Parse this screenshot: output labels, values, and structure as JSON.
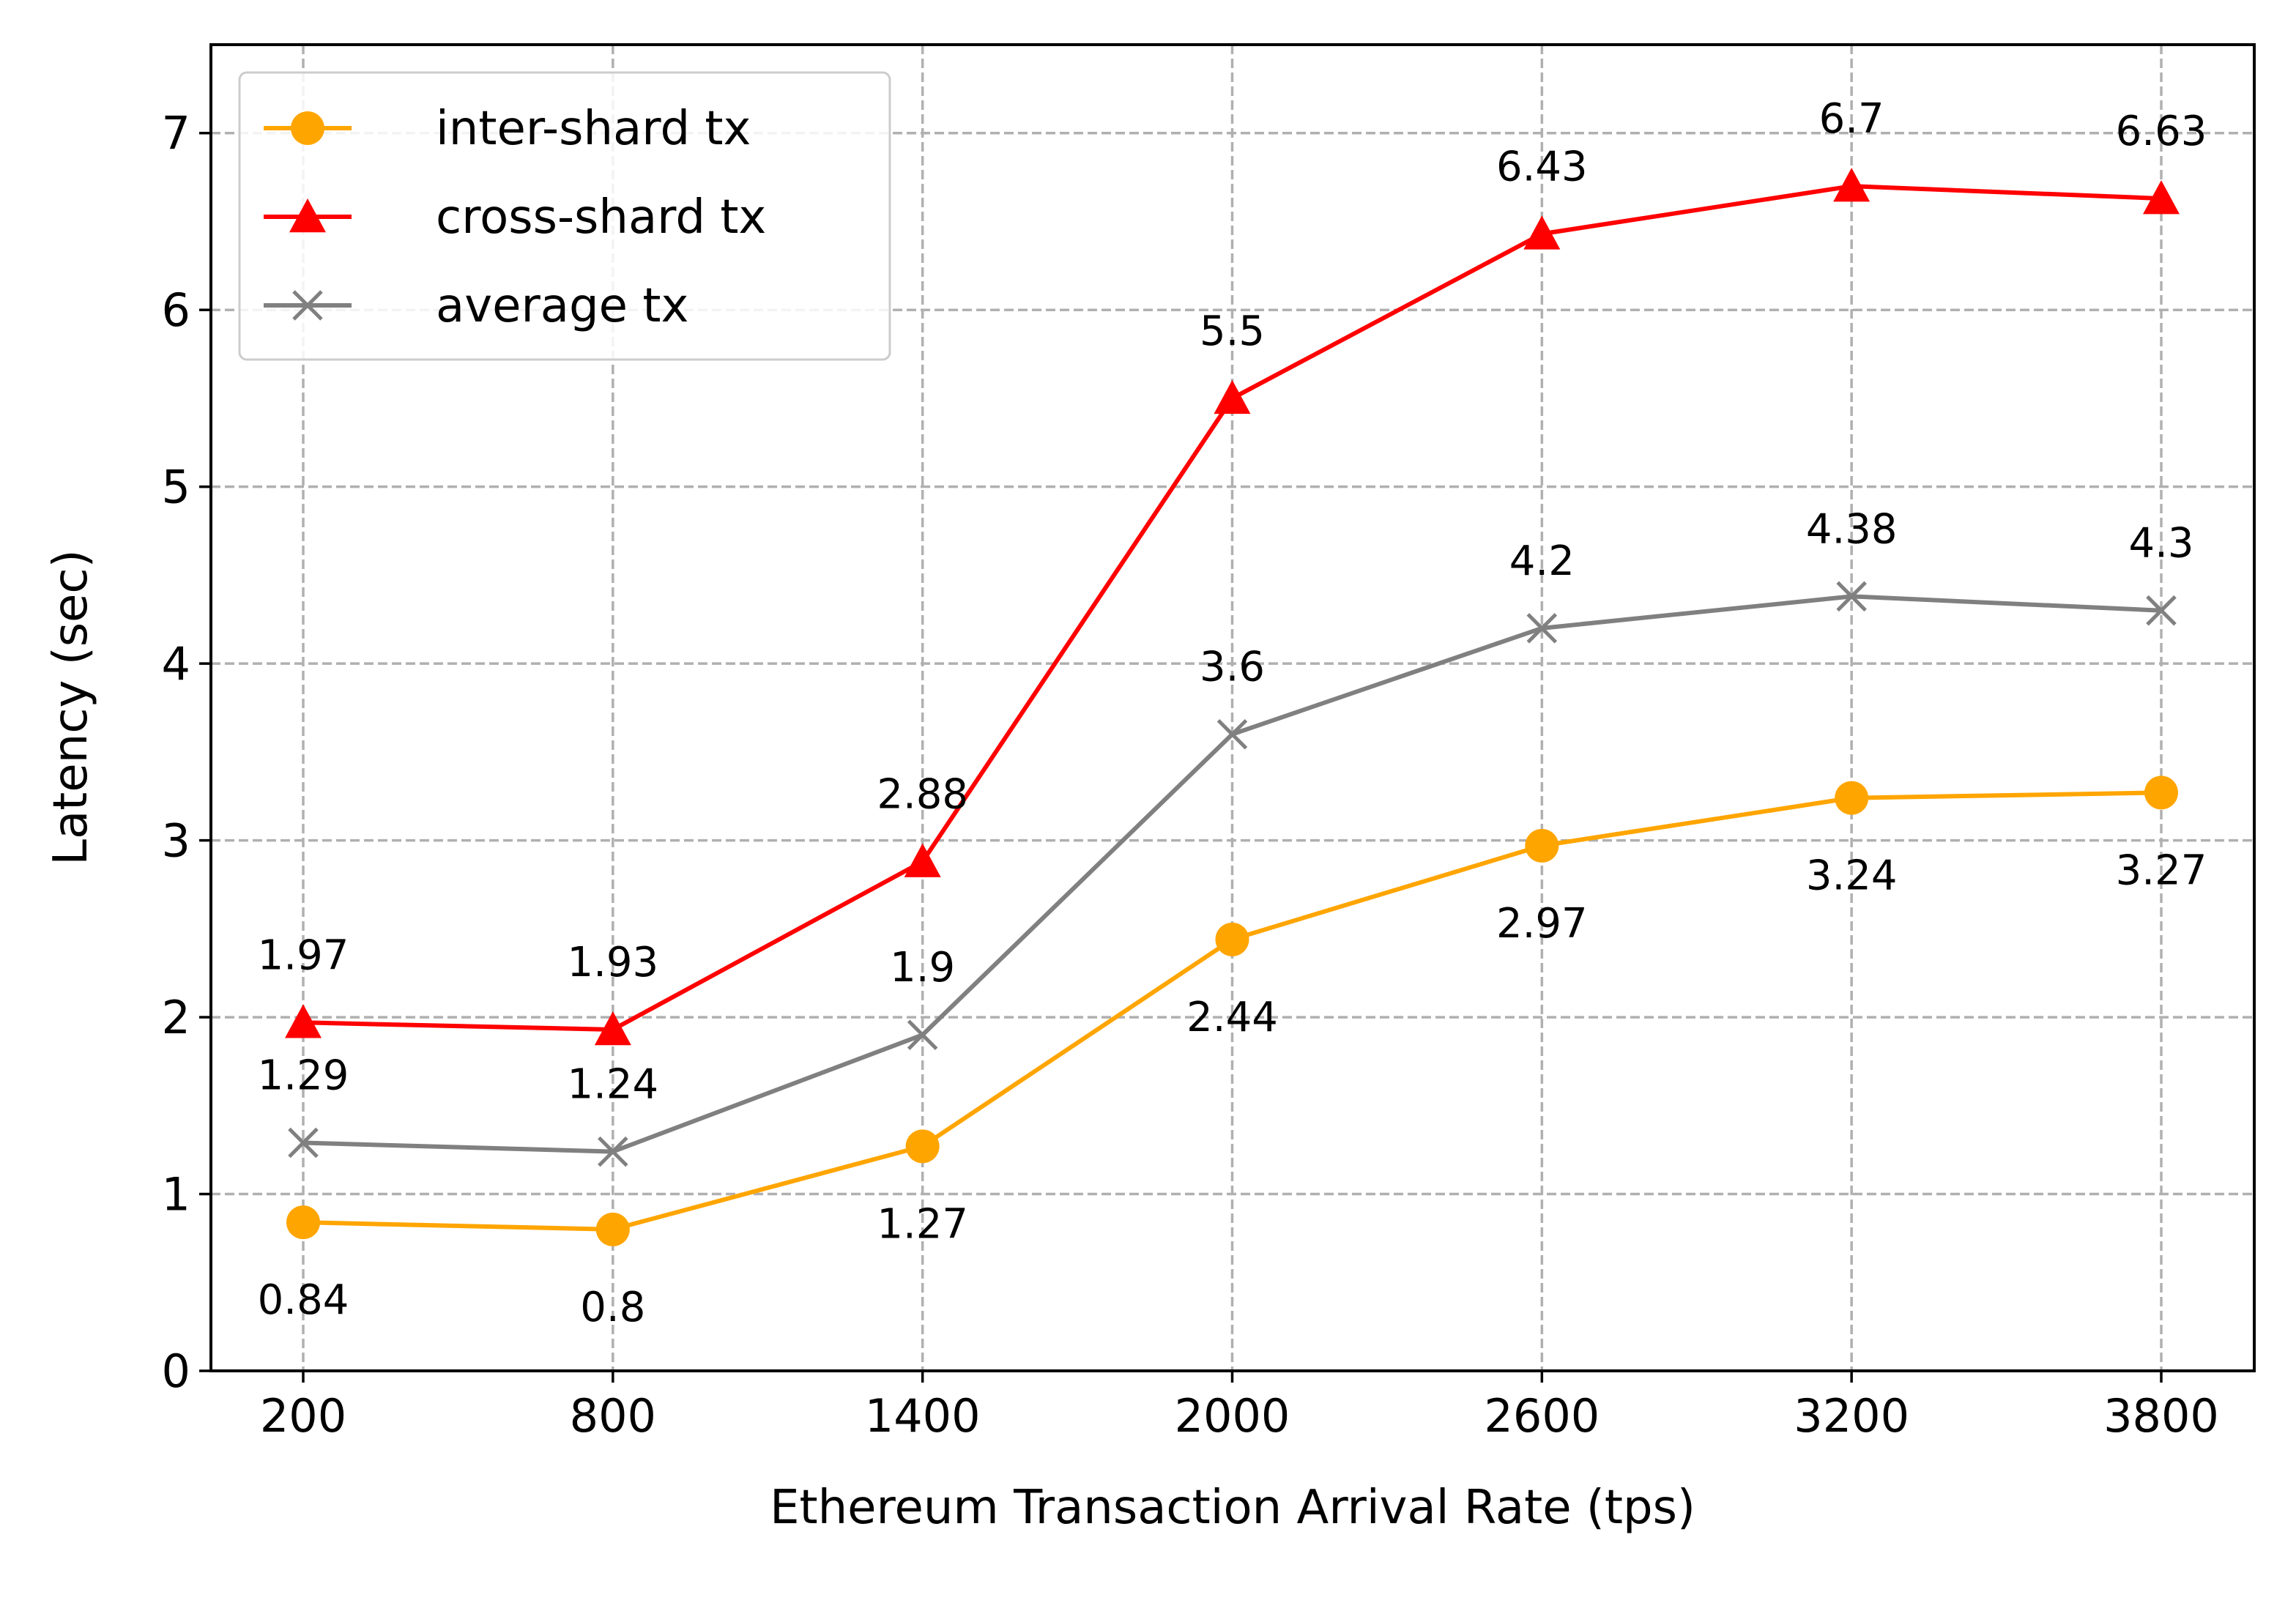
{
  "chart_data": {
    "type": "line",
    "xlabel": "Ethereum Transaction Arrival Rate (tps)",
    "ylabel": "Latency (sec)",
    "x": [
      200,
      800,
      1400,
      2000,
      2600,
      3200,
      3800
    ],
    "x_tick_labels": [
      "200",
      "800",
      "1400",
      "2000",
      "2600",
      "3200",
      "3800"
    ],
    "y_ticks": [
      0,
      1,
      2,
      3,
      4,
      5,
      6,
      7
    ],
    "y_tick_labels": [
      "0",
      "1",
      "2",
      "3",
      "4",
      "5",
      "6",
      "7"
    ],
    "ylim": [
      0,
      7.5
    ],
    "grid": true,
    "legend_position": "upper-left",
    "series": [
      {
        "name": "inter-shard tx",
        "color": "#ffa500",
        "marker": "circle",
        "values": [
          0.84,
          0.8,
          1.27,
          2.44,
          2.97,
          3.24,
          3.27
        ],
        "labels": [
          "0.84",
          "0.8",
          "1.27",
          "2.44",
          "2.97",
          "3.24",
          "3.27"
        ],
        "label_placement": "below"
      },
      {
        "name": "cross-shard tx",
        "color": "#ff0000",
        "marker": "triangle",
        "values": [
          1.97,
          1.93,
          2.88,
          5.5,
          6.43,
          6.7,
          6.63
        ],
        "labels": [
          "1.97",
          "1.93",
          "2.88",
          "5.5",
          "6.43",
          "6.7",
          "6.63"
        ],
        "label_placement": "above"
      },
      {
        "name": "average tx",
        "color": "#808080",
        "marker": "x",
        "values": [
          1.29,
          1.24,
          1.9,
          3.6,
          4.2,
          4.38,
          4.3
        ],
        "labels": [
          "1.29",
          "1.24",
          "1.9",
          "3.6",
          "4.2",
          "4.38",
          "4.3"
        ],
        "label_placement": "above"
      }
    ]
  }
}
